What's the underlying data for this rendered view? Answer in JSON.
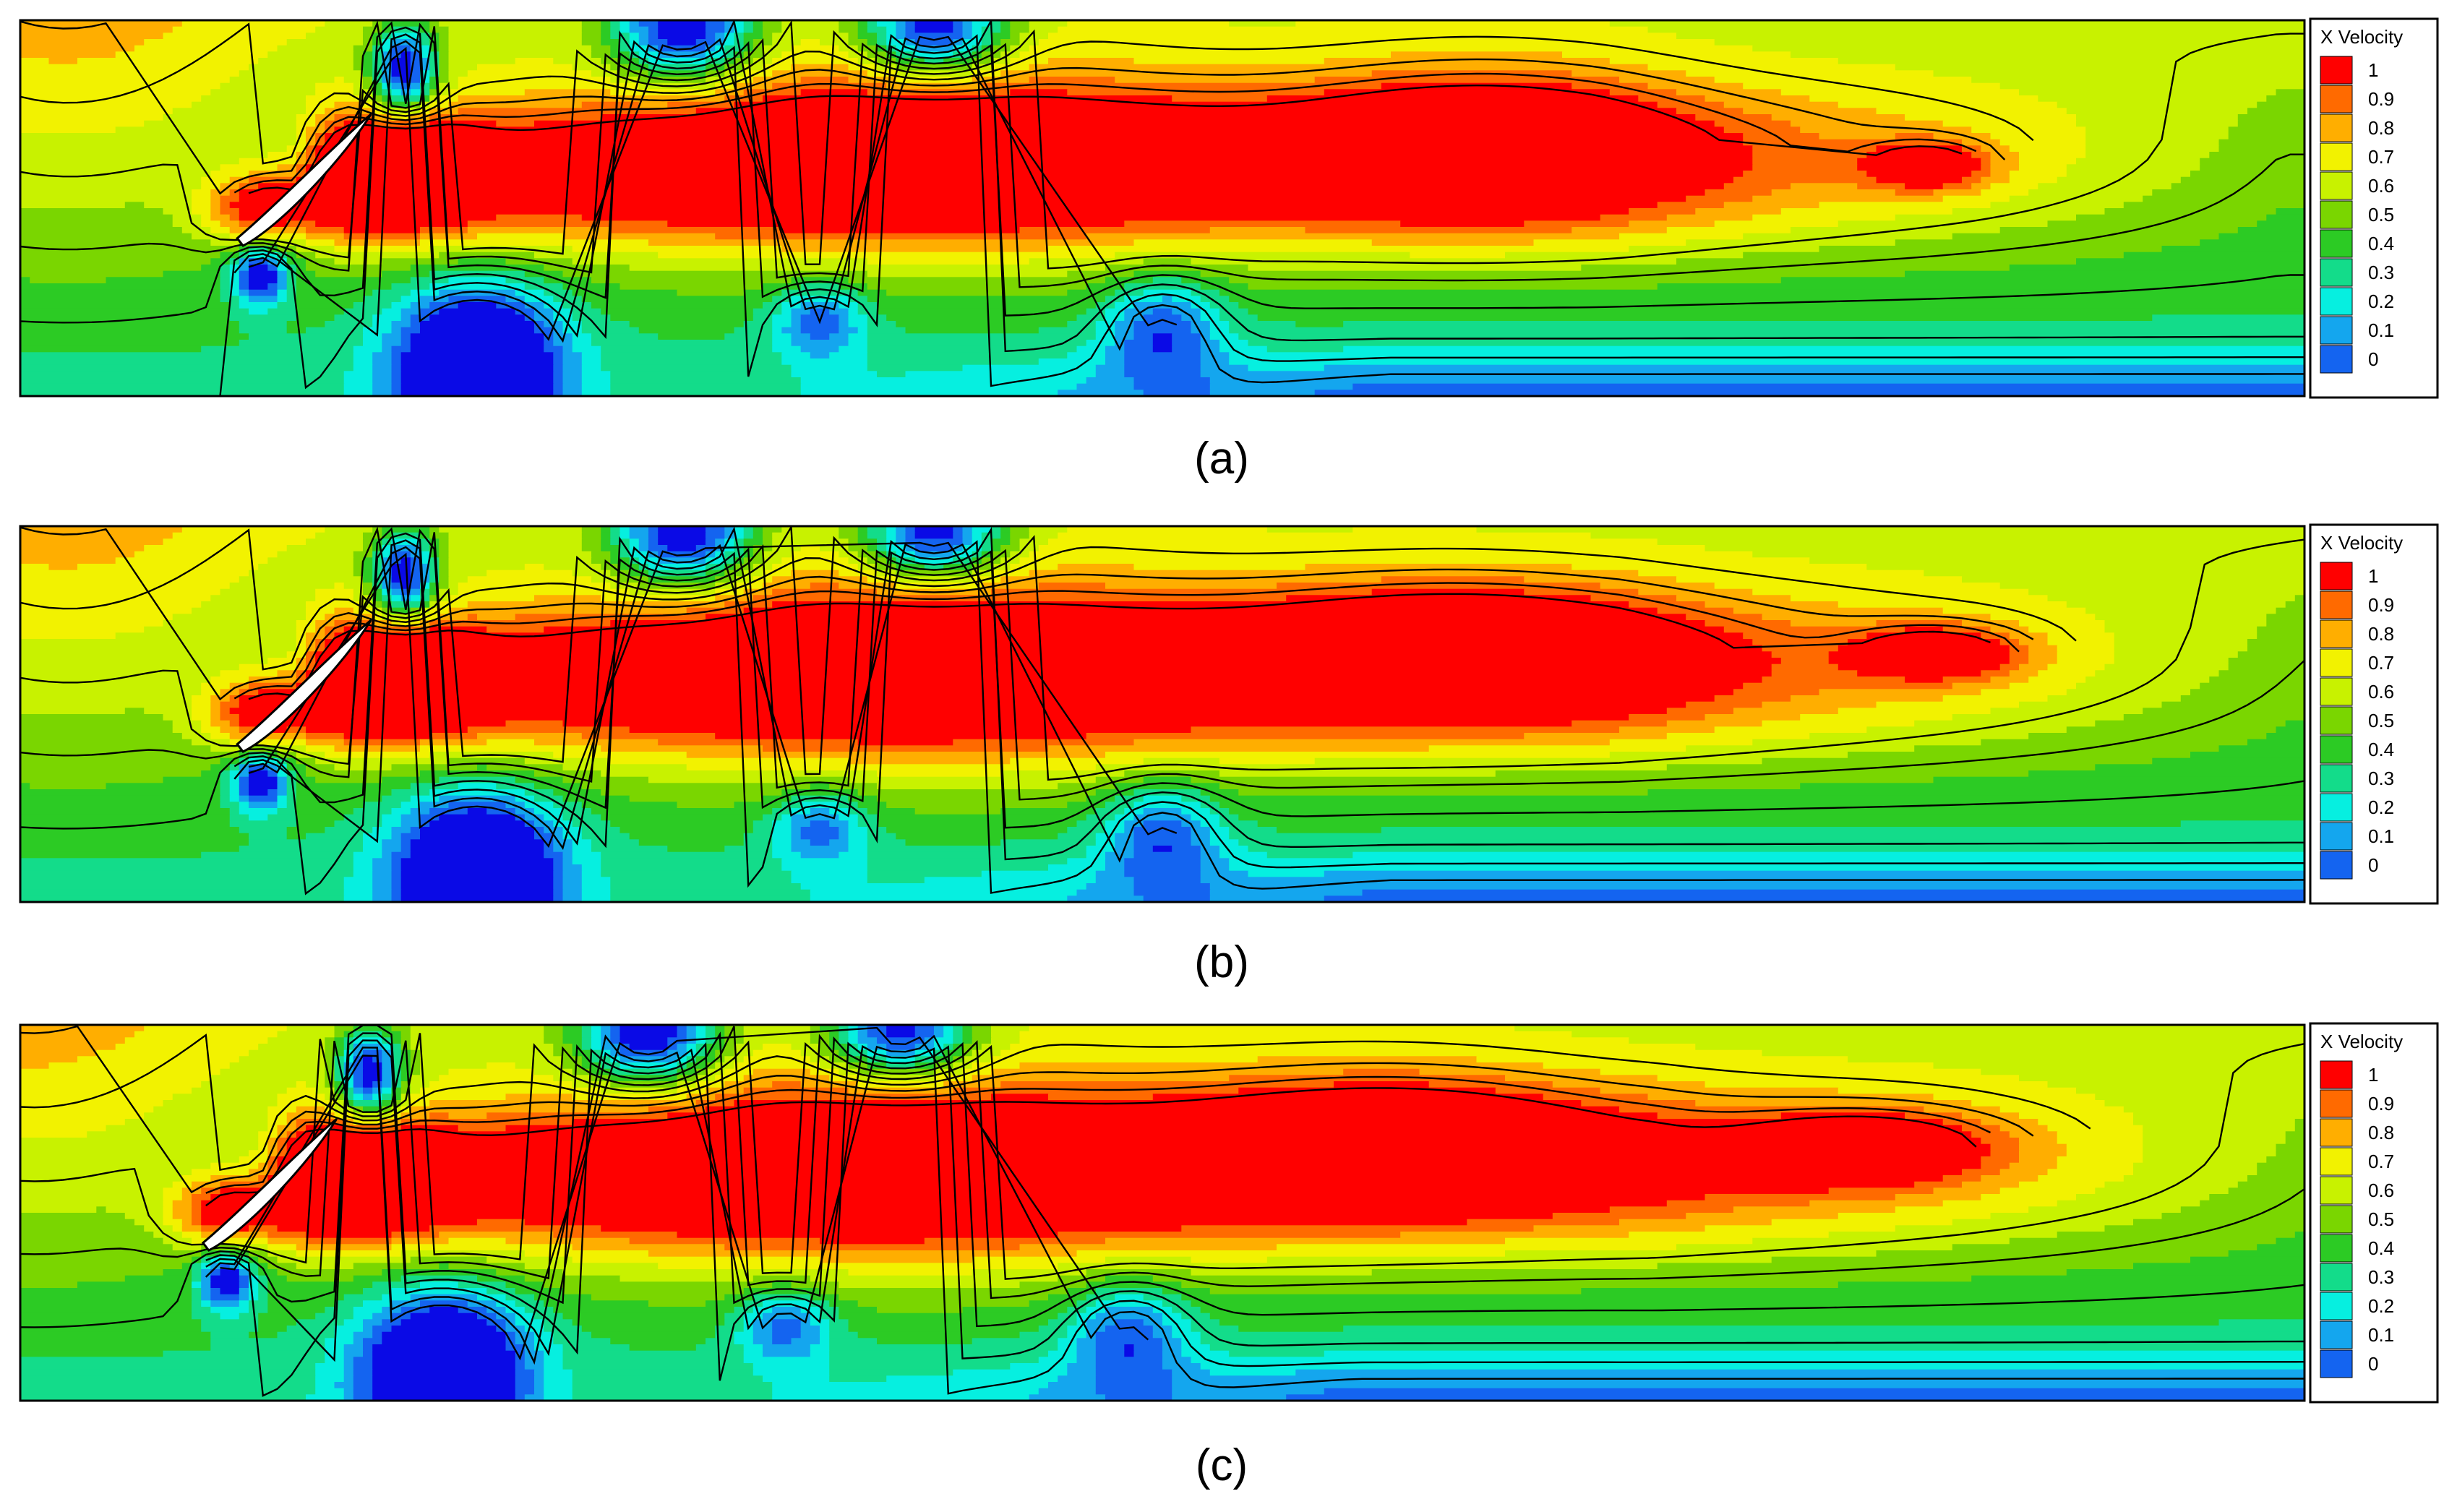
{
  "chart_data": {
    "type": "heatmap",
    "field": "X Velocity",
    "colorbar": {
      "title": "X Velocity",
      "ticks": [
        "1",
        "0.9",
        "0.8",
        "0.7",
        "0.6",
        "0.5",
        "0.4",
        "0.3",
        "0.2",
        "0.1",
        "0"
      ],
      "levels": [
        1,
        0.9,
        0.8,
        0.7,
        0.6,
        0.5,
        0.4,
        0.3,
        0.2,
        0.1,
        0
      ],
      "colors": [
        "#ff0000",
        "#ff6a00",
        "#ffae00",
        "#f2f200",
        "#c8f200",
        "#7ad600",
        "#2ccb24",
        "#13dc8a",
        "#06efe0",
        "#14a6ee",
        "#1464f0",
        "#0a0ae6"
      ],
      "placement": "right"
    },
    "panels": [
      {
        "label": "(a)",
        "stagger": 0,
        "red_cores": [
          {
            "cx": 0.385,
            "cy": 0.36,
            "rx": 0.17,
            "ry": 0.16
          },
          {
            "cx": 0.64,
            "cy": 0.34,
            "rx": 0.09,
            "ry": 0.13
          },
          {
            "cx": 0.835,
            "cy": 0.39,
            "rx": 0.03,
            "ry": 0.04
          }
        ],
        "wake_end": 0.99
      },
      {
        "label": "(b)",
        "stagger": 0,
        "red_cores": [
          {
            "cx": 0.385,
            "cy": 0.38,
            "rx": 0.17,
            "ry": 0.17
          },
          {
            "cx": 0.63,
            "cy": 0.34,
            "rx": 0.1,
            "ry": 0.12
          },
          {
            "cx": 0.84,
            "cy": 0.34,
            "rx": 0.04,
            "ry": 0.045
          }
        ],
        "wake_end": 1.0
      },
      {
        "label": "(c)",
        "stagger": 1,
        "red_cores": [
          {
            "cx": 0.37,
            "cy": 0.38,
            "rx": 0.17,
            "ry": 0.17
          },
          {
            "cx": 0.6,
            "cy": 0.32,
            "rx": 0.1,
            "ry": 0.12
          },
          {
            "cx": 0.81,
            "cy": 0.33,
            "rx": 0.06,
            "ry": 0.06
          }
        ],
        "wake_end": 1.03
      }
    ]
  }
}
